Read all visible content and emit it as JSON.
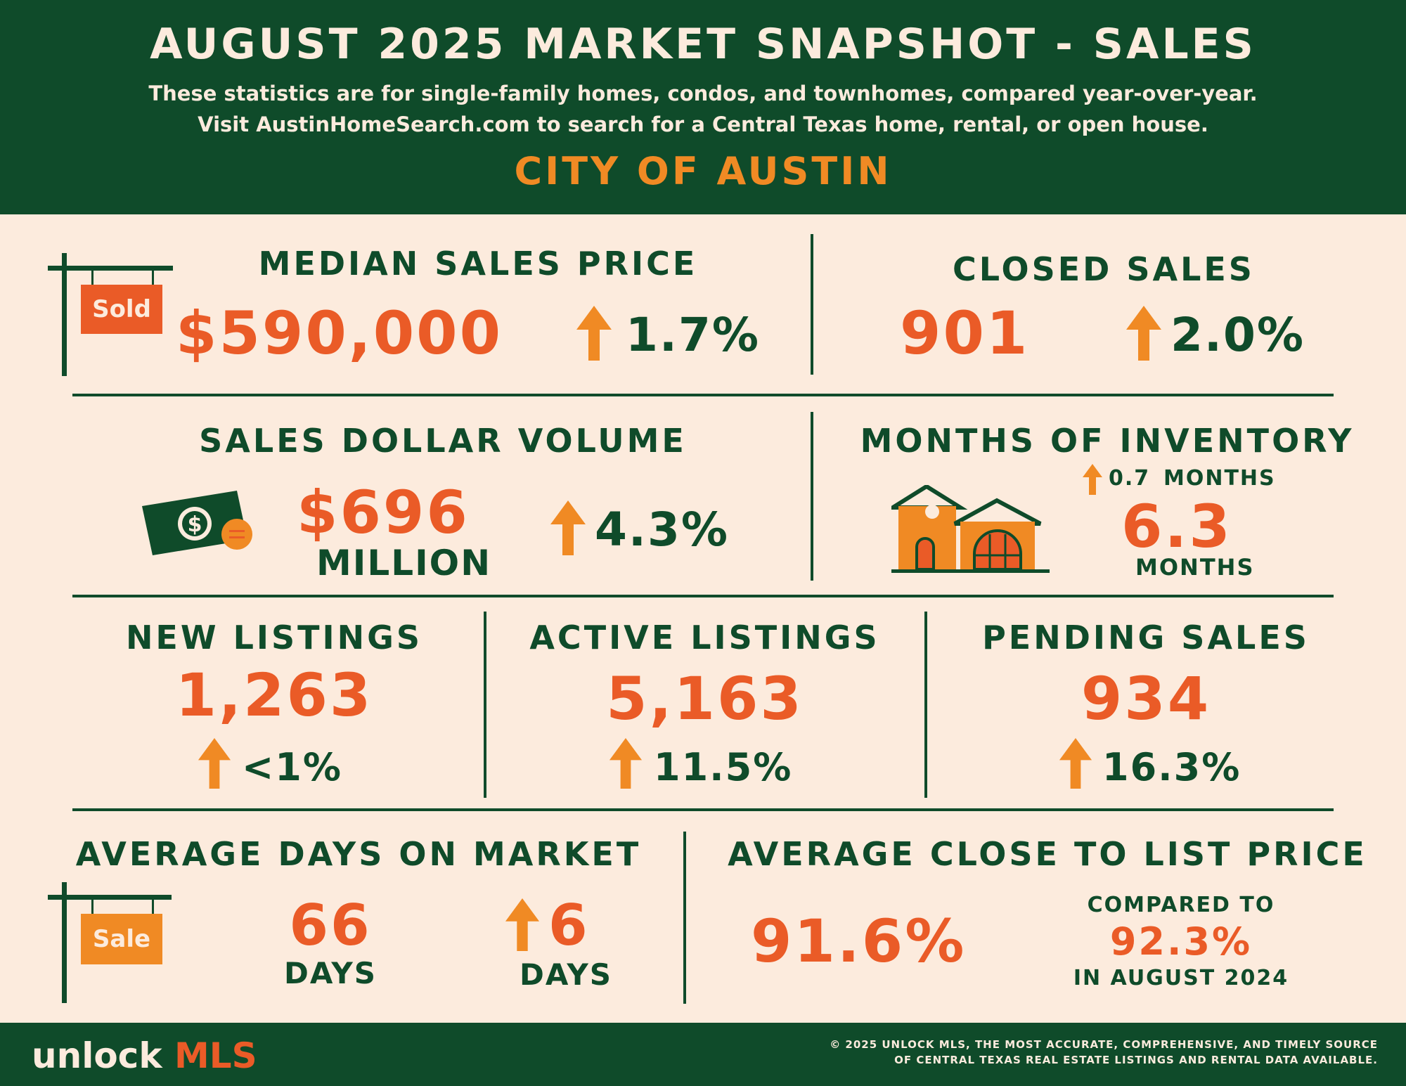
{
  "header": {
    "title": "AUGUST 2025 MARKET SNAPSHOT - SALES",
    "subtitle_line1": "These statistics are for single-family homes, condos, and townhomes, compared year-over-year.",
    "subtitle_line2": "Visit AustinHomeSearch.com to search for a Central Texas home, rental, or open house.",
    "city": "CITY OF AUSTIN"
  },
  "median_sales_price": {
    "label": "MEDIAN SALES PRICE",
    "value": "$590,000",
    "change": "1.7%",
    "sign_text": "Sold"
  },
  "closed_sales": {
    "label": "CLOSED SALES",
    "value": "901",
    "change": "2.0%"
  },
  "sales_dollar_volume": {
    "label": "SALES DOLLAR VOLUME",
    "value": "$696",
    "unit": "MILLION",
    "change": "4.3%"
  },
  "months_of_inventory": {
    "label": "MONTHS OF INVENTORY",
    "change_value": "0.7",
    "change_unit": "MONTHS",
    "value": "6.3",
    "unit": "MONTHS"
  },
  "new_listings": {
    "label": "NEW LISTINGS",
    "value": "1,263",
    "change": "<1%"
  },
  "active_listings": {
    "label": "ACTIVE LISTINGS",
    "value": "5,163",
    "change": "11.5%"
  },
  "pending_sales": {
    "label": "PENDING SALES",
    "value": "934",
    "change": "16.3%"
  },
  "avg_days_on_market": {
    "label": "AVERAGE DAYS ON MARKET",
    "value": "66",
    "unit": "DAYS",
    "change": "6",
    "change_unit": "DAYS",
    "sign_text": "Sale"
  },
  "avg_close_to_list": {
    "label": "AVERAGE CLOSE TO LIST PRICE",
    "value": "91.6%",
    "compare_label": "COMPARED TO",
    "compare_value": "92.3%",
    "compare_period": "IN AUGUST 2024"
  },
  "footer": {
    "brand_part1": "unlock",
    "brand_part2": "MLS",
    "copyright_line1": "© 2025 UNLOCK MLS, THE MOST ACCURATE, COMPREHENSIVE, AND TIMELY SOURCE",
    "copyright_line2": "OF CENTRAL TEXAS REAL ESTATE LISTINGS AND RENTAL DATA AVAILABLE."
  },
  "colors": {
    "green": "#0f4b2a",
    "orange": "#ea5b27",
    "amber": "#f08a24",
    "cream": "#fcebdd"
  },
  "icons": [
    "up-arrow-icon",
    "sold-sign-icon",
    "sale-sign-icon",
    "money-icon",
    "house-icon"
  ]
}
